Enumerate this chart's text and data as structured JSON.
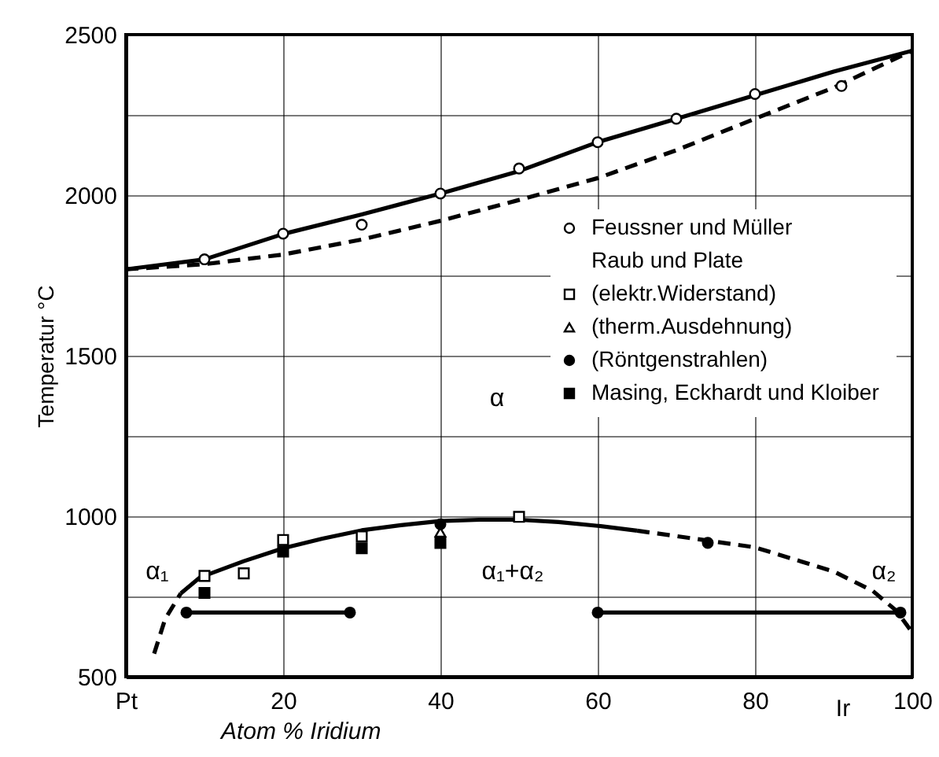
{
  "chart_data": {
    "type": "line",
    "xlabel": "Atom % Iridium",
    "ylabel": "Temperatur °C",
    "xlim": [
      0,
      100
    ],
    "ylim": [
      500,
      2500
    ],
    "xticks": [
      {
        "value": 0,
        "label": "Pt"
      },
      20,
      40,
      60,
      80,
      100
    ],
    "yticks": [
      500,
      {
        "value": 750,
        "label": null
      },
      1000,
      {
        "value": 1250,
        "label": null
      },
      1500,
      {
        "value": 1750,
        "label": null
      },
      2000,
      {
        "value": 2250,
        "label": null
      },
      2500
    ],
    "grid": true,
    "legend": "right",
    "series": [
      {
        "color": "#000000",
        "line_style": "solid",
        "x": [
          0,
          10,
          20,
          30,
          40,
          50,
          60,
          70,
          80,
          90,
          100
        ],
        "values": [
          1769,
          1800,
          1879,
          1940,
          2005,
          2075,
          2165,
          2238,
          2311,
          2385,
          2450
        ]
      },
      {
        "color": "#000000",
        "line_style": "dashed",
        "x": [
          0,
          10,
          20,
          30,
          40,
          50,
          60,
          70,
          80,
          90,
          100
        ],
        "values": [
          1769,
          1785,
          1815,
          1862,
          1920,
          1985,
          2053,
          2140,
          2238,
          2335,
          2450
        ]
      },
      {
        "color": "#000000",
        "line_style": "dashed",
        "x": [
          3.6,
          5,
          7
        ],
        "values": [
          572,
          680,
          760
        ]
      },
      {
        "color": "#000000",
        "line_style": "solid",
        "x": [
          7,
          9.4,
          15,
          20,
          25,
          30,
          35,
          40,
          45,
          50,
          55,
          60,
          65
        ],
        "values": [
          760,
          809,
          860,
          900,
          930,
          956,
          972,
          985,
          989,
          989,
          982,
          970,
          955
        ]
      },
      {
        "color": "#000000",
        "line_style": "dashed",
        "x": [
          65,
          70,
          80,
          90,
          95,
          98,
          100
        ],
        "values": [
          955,
          938,
          903,
          828,
          767,
          705,
          638
        ]
      },
      {
        "color": "#000000",
        "line_style": "solid",
        "marker": "circle",
        "x": [
          7.7,
          28.5
        ],
        "values": [
          700,
          700
        ]
      },
      {
        "color": "#000000",
        "line_style": "solid",
        "marker": "circle",
        "x": [
          60,
          98.5
        ],
        "values": [
          700,
          700
        ]
      },
      {
        "type": "scatter",
        "name": "Feussner und Müller",
        "color": "#ffffff",
        "marker": "circle",
        "x": [
          10,
          20,
          30,
          40,
          50,
          60,
          70,
          80,
          91
        ],
        "values": [
          1800,
          1880,
          1908,
          2005,
          2083,
          2165,
          2238,
          2315,
          2340
        ]
      },
      {
        "type": "scatter",
        "name": "(elektr.Widerstand)",
        "color": "#ffffff",
        "marker": "square",
        "x": [
          10,
          15,
          20,
          30,
          50
        ],
        "values": [
          814,
          822,
          926,
          937,
          998
        ]
      },
      {
        "type": "scatter",
        "name": "(therm.Ausdehnung)",
        "color": "#ffffff",
        "marker": "triangle",
        "x": [
          40
        ],
        "values": [
          950
        ]
      },
      {
        "type": "scatter",
        "name": "(Röntgenstrahlen)",
        "color": "#000000",
        "marker": "circle",
        "x": [
          40,
          74
        ],
        "values": [
          975,
          917
        ]
      },
      {
        "type": "scatter",
        "name": "Masing, Eckhardt und Kloiber",
        "color": "#000000",
        "marker": "square",
        "x": [
          10,
          20,
          30,
          40
        ],
        "values": [
          761,
          890,
          900,
          917
        ]
      }
    ],
    "annotations": [
      "Raub und Plate",
      "α",
      "α₁",
      "α₁+α₂",
      "α₂",
      "Ir"
    ]
  }
}
